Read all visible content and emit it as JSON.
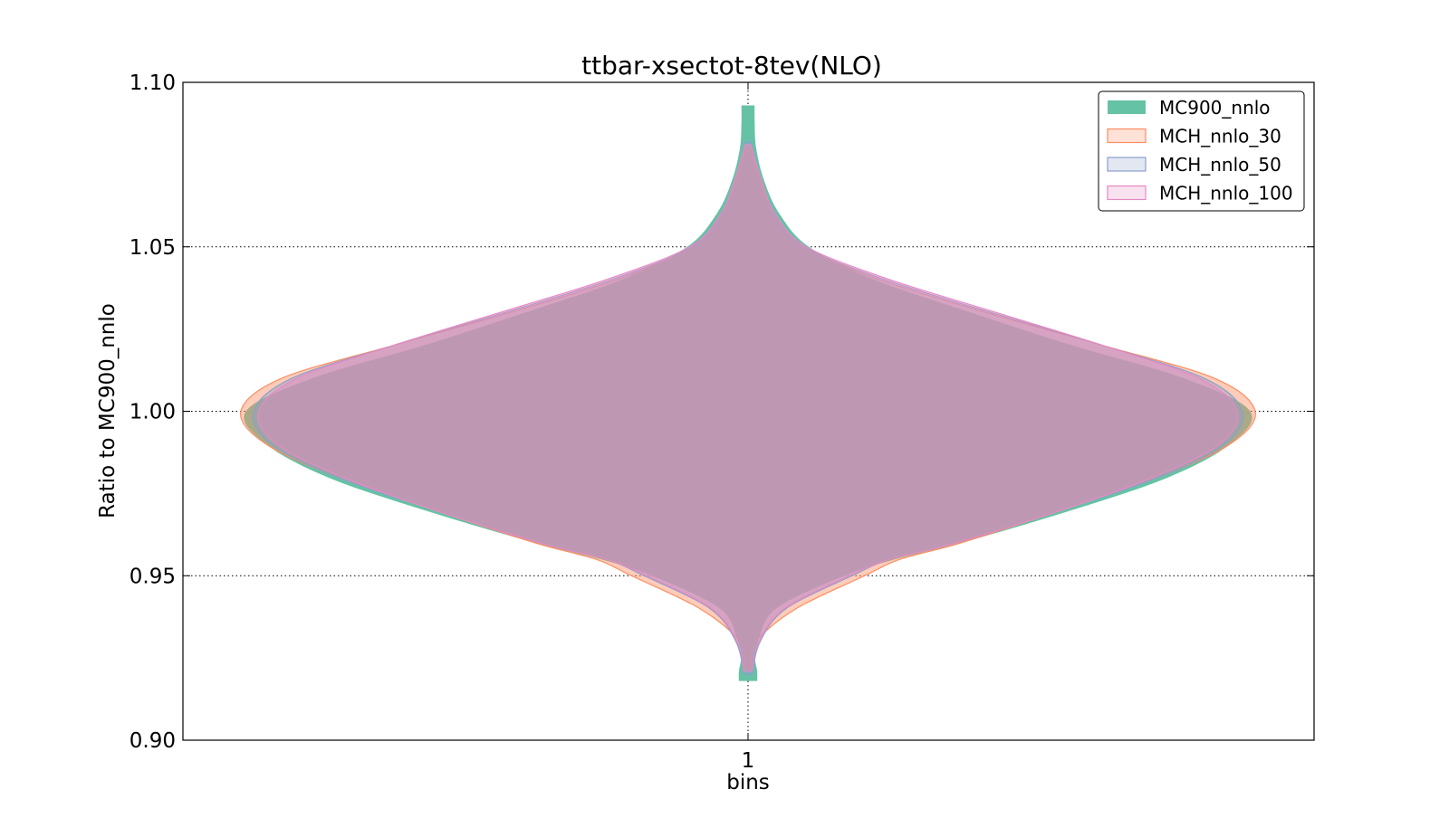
{
  "chart_data": {
    "type": "violin",
    "title": "ttbar-xsectot-8tev(NLO)",
    "xlabel": "bins",
    "ylabel": "Ratio to MC900_nnlo",
    "categories": [
      "1"
    ],
    "ylim": [
      0.9,
      1.1
    ],
    "yticks": [
      0.9,
      0.95,
      1.0,
      1.05,
      1.1
    ],
    "ytick_labels": [
      "0.90",
      "0.95",
      "1.00",
      "1.05",
      "1.10"
    ],
    "grid": true,
    "legend_position": "top-right",
    "series": [
      {
        "name": "MC900_nnlo",
        "color": "#66c2a5",
        "y_min": 0.918,
        "y_max": 1.093,
        "density": [
          [
            0.918,
            0.018
          ],
          [
            0.921,
            0.018
          ],
          [
            0.925,
            0.014
          ],
          [
            0.93,
            0.02
          ],
          [
            0.94,
            0.055
          ],
          [
            0.95,
            0.19
          ],
          [
            0.955,
            0.29
          ],
          [
            0.96,
            0.42
          ],
          [
            0.97,
            0.64
          ],
          [
            0.98,
            0.83
          ],
          [
            0.99,
            0.95
          ],
          [
            1.0,
            0.99
          ],
          [
            1.01,
            0.86
          ],
          [
            1.02,
            0.64
          ],
          [
            1.03,
            0.44
          ],
          [
            1.04,
            0.25
          ],
          [
            1.05,
            0.12
          ],
          [
            1.06,
            0.062
          ],
          [
            1.07,
            0.032
          ],
          [
            1.08,
            0.016
          ],
          [
            1.088,
            0.013
          ],
          [
            1.093,
            0.013
          ]
        ]
      },
      {
        "name": "MCH_nnlo_30",
        "color": "#fc8d62",
        "y_min": 0.922,
        "y_max": 1.08,
        "density": [
          [
            0.922,
            0.006
          ],
          [
            0.93,
            0.016
          ],
          [
            0.94,
            0.095
          ],
          [
            0.95,
            0.23
          ],
          [
            0.955,
            0.3
          ],
          [
            0.96,
            0.42
          ],
          [
            0.97,
            0.62
          ],
          [
            0.98,
            0.81
          ],
          [
            0.99,
            0.95
          ],
          [
            1.0,
            1.0
          ],
          [
            1.01,
            0.92
          ],
          [
            1.02,
            0.7
          ],
          [
            1.03,
            0.47
          ],
          [
            1.04,
            0.26
          ],
          [
            1.05,
            0.11
          ],
          [
            1.06,
            0.052
          ],
          [
            1.07,
            0.023
          ],
          [
            1.08,
            0.004
          ]
        ]
      },
      {
        "name": "MCH_nnlo_50",
        "color": "#8da0cb",
        "y_min": 0.92,
        "y_max": 1.082,
        "density": [
          [
            0.92,
            0.008
          ],
          [
            0.93,
            0.024
          ],
          [
            0.94,
            0.075
          ],
          [
            0.95,
            0.205
          ],
          [
            0.955,
            0.28
          ],
          [
            0.96,
            0.41
          ],
          [
            0.97,
            0.62
          ],
          [
            0.98,
            0.81
          ],
          [
            0.99,
            0.94
          ],
          [
            1.0,
            0.975
          ],
          [
            1.01,
            0.9
          ],
          [
            1.02,
            0.7
          ],
          [
            1.03,
            0.48
          ],
          [
            1.04,
            0.27
          ],
          [
            1.05,
            0.11
          ],
          [
            1.06,
            0.052
          ],
          [
            1.07,
            0.026
          ],
          [
            1.082,
            0.006
          ]
        ]
      },
      {
        "name": "MCH_nnlo_100",
        "color": "#e78ac3",
        "y_min": 0.921,
        "y_max": 1.081,
        "density": [
          [
            0.921,
            0.008
          ],
          [
            0.93,
            0.022
          ],
          [
            0.94,
            0.072
          ],
          [
            0.95,
            0.2
          ],
          [
            0.955,
            0.28
          ],
          [
            0.96,
            0.41
          ],
          [
            0.97,
            0.62
          ],
          [
            0.98,
            0.8
          ],
          [
            0.99,
            0.93
          ],
          [
            1.0,
            0.965
          ],
          [
            1.01,
            0.89
          ],
          [
            1.02,
            0.7
          ],
          [
            1.03,
            0.49
          ],
          [
            1.04,
            0.28
          ],
          [
            1.05,
            0.115
          ],
          [
            1.06,
            0.054
          ],
          [
            1.07,
            0.027
          ],
          [
            1.081,
            0.006
          ]
        ]
      }
    ]
  }
}
